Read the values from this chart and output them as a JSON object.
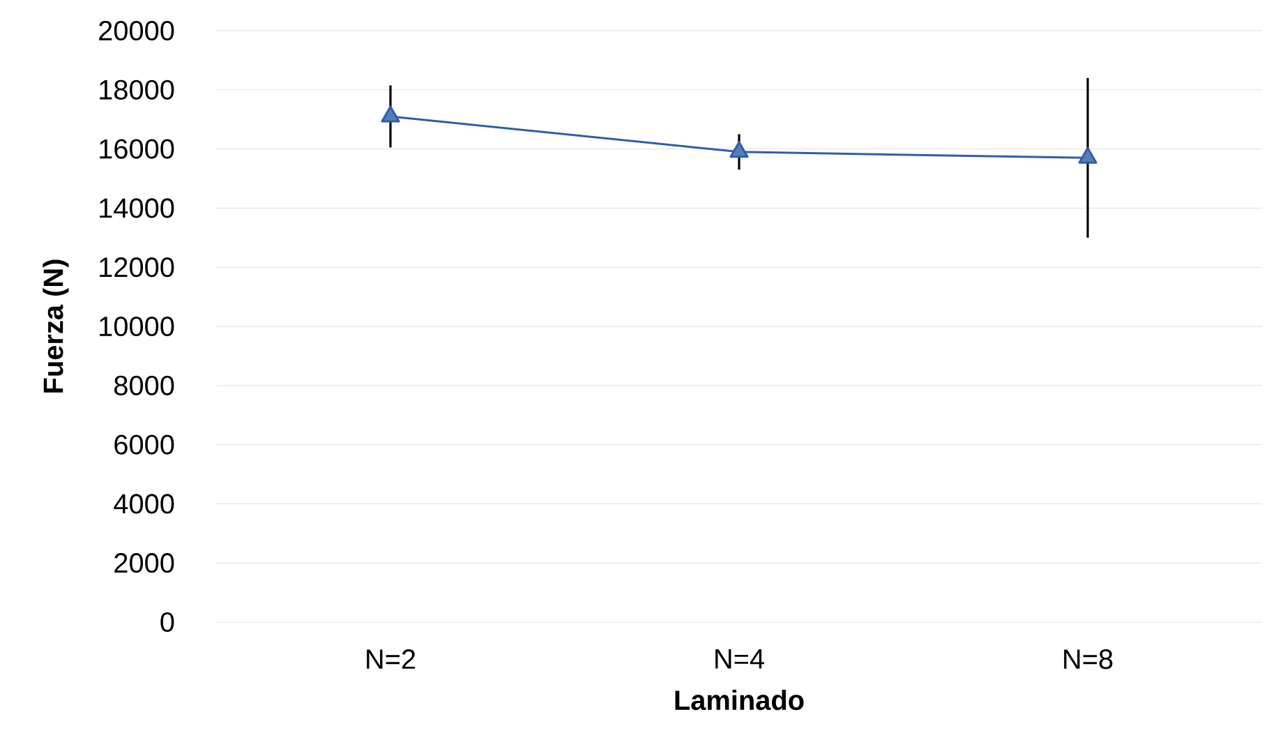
{
  "chart_data": {
    "type": "line",
    "xlabel": "Laminado",
    "ylabel": "Fuerza (N)",
    "categories": [
      "N=2",
      "N=4",
      "N=8"
    ],
    "series": [
      {
        "color": "#2e5ea8",
        "values": [
          17100,
          15900,
          15700
        ],
        "errors": [
          1050,
          600,
          2700
        ]
      }
    ],
    "marker": "triangle",
    "grid": "y",
    "legend": false,
    "ylim": [
      0,
      20000
    ],
    "yticks": [
      0,
      2000,
      4000,
      6000,
      8000,
      10000,
      12000,
      14000,
      16000,
      18000,
      20000
    ]
  }
}
